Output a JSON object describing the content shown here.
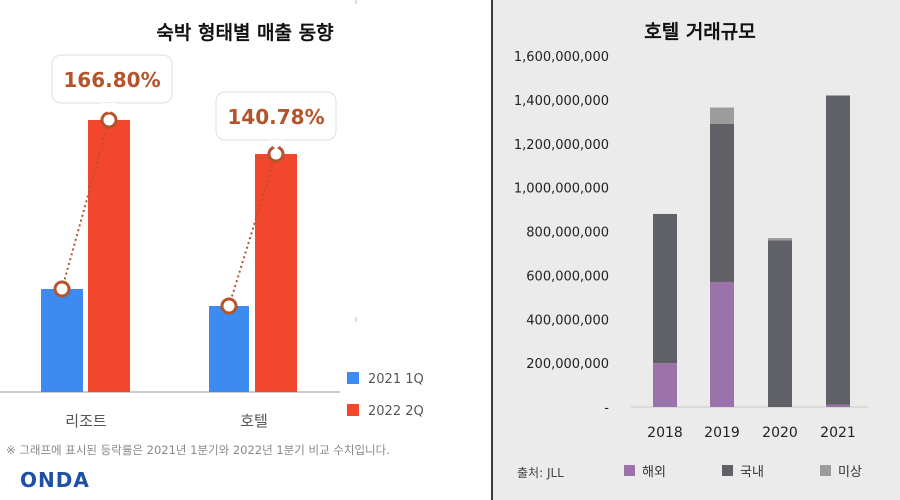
{
  "chart_data": [
    {
      "type": "bar",
      "title": "숙박 형태별 매출 동향",
      "categories": [
        "리조트",
        "호텔"
      ],
      "series": [
        {
          "name": "2021 1Q",
          "color": "#3d8bf0",
          "values": [
            null,
            null
          ]
        },
        {
          "name": "2022 2Q",
          "color": "#f2462d",
          "values": [
            null,
            null
          ]
        }
      ],
      "annotations": [
        "166.80%",
        "140.78%"
      ],
      "footnote": "※ 그래프에 표시된 등락률은 2021년 1분기와 2022년 1분기 비교 수치입니다.",
      "brand": "ONDA",
      "legend_position": "bottom-right"
    },
    {
      "type": "bar",
      "stacked": true,
      "title": "호텔 거래규모",
      "categories": [
        "2018",
        "2019",
        "2020",
        "2021"
      ],
      "series": [
        {
          "name": "해외",
          "color": "#9b72aa",
          "values": [
            200000000,
            570000000,
            0,
            10000000
          ]
        },
        {
          "name": "국내",
          "color": "#606166",
          "values": [
            680000000,
            720000000,
            760000000,
            1410000000
          ]
        },
        {
          "name": "미상",
          "color": "#9c9c9c",
          "values": [
            0,
            75000000,
            10000000,
            0
          ]
        }
      ],
      "ylim": [
        0,
        1600000000
      ],
      "yticks": [
        0,
        200000000,
        400000000,
        600000000,
        800000000,
        1000000000,
        1200000000,
        1400000000,
        1600000000
      ],
      "ytick_labels": [
        "-",
        "200,000,000",
        "400,000,000",
        "600,000,000",
        "800,000,000",
        "1,000,000,000",
        "1,200,000,000",
        "1,400,000,000",
        "1,600,000,000"
      ],
      "source": "출처: JLL",
      "legend_position": "bottom",
      "grid": false
    }
  ]
}
